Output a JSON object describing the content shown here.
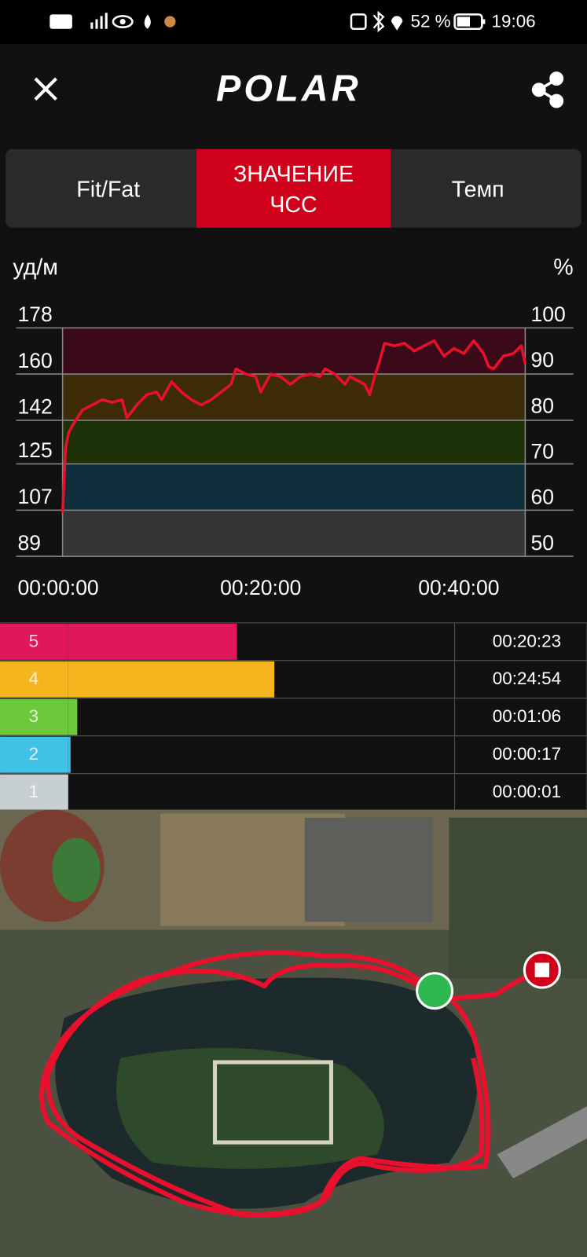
{
  "status_bar": {
    "battery": "52 %",
    "time": "19:06"
  },
  "header": {
    "logo": "POLAR"
  },
  "tabs": [
    [
      "Fit/Fat"
    ],
    [
      "ЗНАЧЕНИЕ",
      "ЧСС"
    ],
    [
      "Темп"
    ]
  ],
  "hr_chart": {
    "type": "line",
    "y_label": "уд/м",
    "y2_label": "%",
    "x": [
      0,
      0.3,
      0.6,
      1,
      2,
      3,
      4,
      5,
      6,
      6.5,
      7.5,
      8.5,
      9.5,
      10,
      11,
      12,
      13,
      14,
      15,
      16,
      17,
      17.5,
      18.5,
      19.5,
      20,
      21,
      22,
      23,
      24,
      25,
      26,
      26.5,
      27.5,
      28.5,
      29,
      30,
      30.5,
      31,
      31.5,
      32,
      32.5,
      33.5,
      34.5,
      35.5,
      36.5,
      37.5,
      38.5,
      39.5,
      40.5,
      41.5,
      42.5,
      43,
      43.5,
      44.5,
      45.5,
      46.3,
      46.7
    ],
    "series": [
      {
        "color": "#e8102c",
        "values": [
          106,
          131,
          137,
          140,
          146,
          148,
          150,
          149,
          150,
          143,
          148,
          152,
          153,
          150,
          157,
          153,
          150,
          148,
          150,
          153,
          156,
          162,
          160,
          159,
          153,
          160,
          159,
          156,
          159,
          160,
          159,
          162,
          160,
          156,
          159,
          157,
          156,
          152,
          159,
          165,
          172,
          171,
          172,
          169,
          171,
          173,
          167,
          170,
          168,
          173,
          168,
          163,
          162,
          167,
          168,
          171,
          164
        ]
      }
    ],
    "xlim": [
      0,
      46.7
    ],
    "xticks": [
      {
        "value": 0,
        "label": "00:00:00"
      },
      {
        "value": 20,
        "label": "00:20:00"
      },
      {
        "value": 40,
        "label": "00:40:00"
      }
    ],
    "ylim": [
      89,
      178
    ],
    "yticks": [
      178,
      160,
      142,
      125,
      107,
      89
    ],
    "y2lim": [
      50,
      100
    ],
    "y2ticks": [
      100,
      90,
      80,
      70,
      60,
      50
    ],
    "zone_band_colors": [
      "#3b0a18",
      "#3e2b07",
      "#1d3208",
      "#0f2f3d",
      "#343434"
    ]
  },
  "zones": {
    "labels": [
      "5",
      "4",
      "3",
      "2",
      "1"
    ],
    "colors": [
      "#e0185a",
      "#f5b51f",
      "#6cc93a",
      "#3fc2e6",
      "#c8cfd2"
    ],
    "values": [
      1223,
      1494,
      66,
      17,
      1
    ],
    "value_labels": [
      "00:20:23",
      "00:24:54",
      "00:01:06",
      "00:00:17",
      "00:00:01"
    ]
  }
}
